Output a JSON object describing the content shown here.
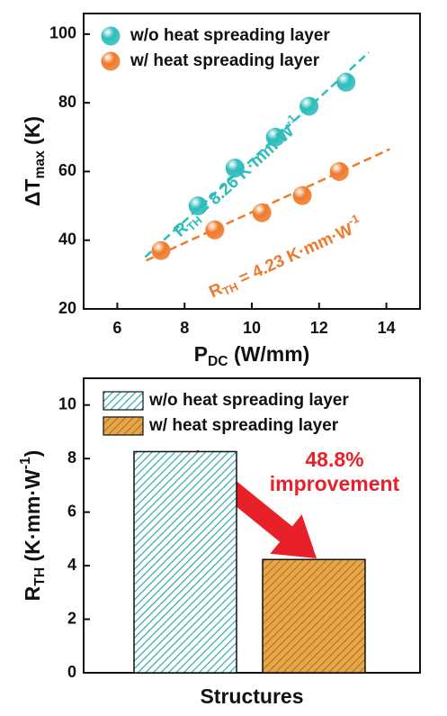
{
  "chart_data": [
    {
      "type": "scatter",
      "x_label": {
        "text": "P",
        "sub": "DC",
        "rest": " (W/mm)"
      },
      "y_label": {
        "text": "ΔT",
        "sub": "max",
        "rest": " (K)"
      },
      "xlim": [
        5,
        15
      ],
      "xticks": [
        6,
        8,
        10,
        12,
        14
      ],
      "ylim": [
        20,
        106
      ],
      "yticks": [
        20,
        40,
        60,
        80,
        100
      ],
      "series": [
        {
          "name": "w/o heat spreading layer",
          "color": "#2ebcbc",
          "x": [
            8.4,
            9.5,
            10.7,
            11.7,
            12.8
          ],
          "values": [
            50,
            61,
            70,
            79,
            86
          ],
          "fit_x": [
            6.83,
            13.48
          ],
          "fit_values": [
            35.1,
            94.7
          ],
          "annotation": {
            "text": "R",
            "sub": "TH",
            "rest": " = 8.26 K·mm·W",
            "sup": "-1"
          }
        },
        {
          "name": "w/ heat spreading layer",
          "color": "#f07a2c",
          "x": [
            7.3,
            8.9,
            10.3,
            11.5,
            12.6
          ],
          "values": [
            37,
            43,
            48,
            53,
            60
          ],
          "fit_x": [
            6.86,
            14.1
          ],
          "fit_values": [
            34.1,
            66.5
          ],
          "annotation": {
            "text": "R",
            "sub": "TH",
            "rest": " = 4.23 K·mm·W",
            "sup": "-1"
          }
        }
      ]
    },
    {
      "type": "bar",
      "x_label": "Structures",
      "y_label": {
        "text": "R",
        "sub": "TH",
        "rest": " (K·mm·W",
        "sup": "-1",
        "end": ")"
      },
      "categories": [
        null,
        null
      ],
      "ylim": [
        0,
        11
      ],
      "yticks": [
        0,
        2,
        4,
        6,
        8,
        10
      ],
      "series": [
        {
          "name": "w/o heat spreading layer",
          "color": "#ffffff",
          "hatch": "#1fa5a5",
          "values": [
            8.26,
            null
          ]
        },
        {
          "name": "w/ heat spreading layer",
          "color": "#e6a64a",
          "hatch": "#b07020",
          "values": [
            null,
            4.23
          ]
        }
      ],
      "annotation": {
        "lines": [
          "48.8%",
          "improvement"
        ],
        "color": "#e8202a"
      }
    }
  ]
}
